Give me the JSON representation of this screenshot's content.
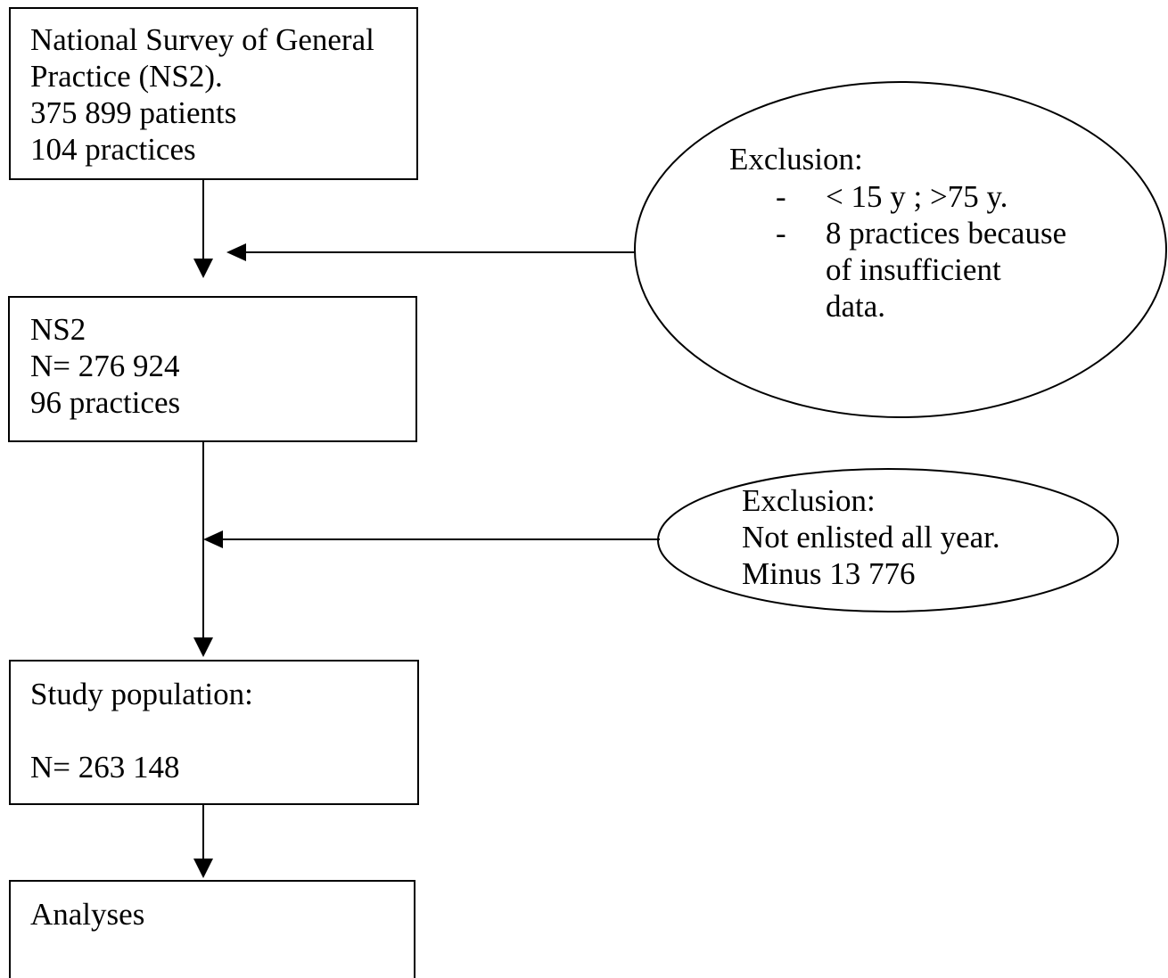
{
  "boxes": {
    "source": {
      "line1": "National Survey of General",
      "line2": "Practice (NS2).",
      "line3": "375 899 patients",
      "line4": "104 practices"
    },
    "ns2": {
      "line1": "NS2",
      "line2": "N= 276 924",
      "line3": "96 practices"
    },
    "study": {
      "line1": "Study population:",
      "line2": "N= 263 148"
    },
    "analyses": {
      "line1": "Analyses"
    }
  },
  "exclusions": {
    "first": {
      "title": "Exclusion:",
      "bullet_marker": "-",
      "item1": "< 15 y ; >75 y.",
      "item2_line1": "8 practices because",
      "item2_line2": "of insufficient",
      "item2_line3": "data."
    },
    "second": {
      "title": "Exclusion:",
      "line2": "Not enlisted all year.",
      "line3": "Minus 13 776"
    }
  }
}
